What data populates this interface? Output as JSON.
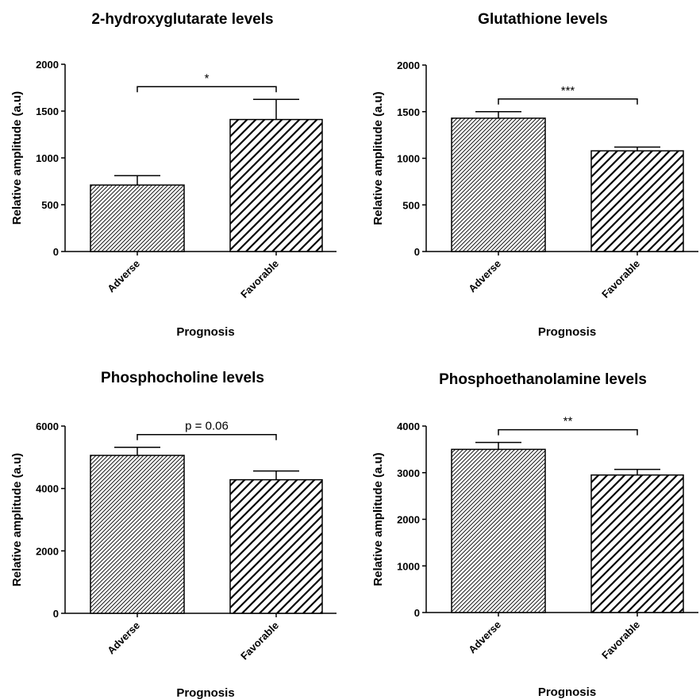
{
  "chart_data": [
    {
      "type": "bar",
      "title": "2-hydroxyglutarate levels",
      "xlabel": "Prognosis",
      "ylabel": "Relative amplitude (a.u)",
      "categories": [
        "Adverse",
        "Favorable"
      ],
      "values": [
        710,
        1410
      ],
      "errors": [
        100,
        215
      ],
      "ylim": [
        0,
        2000
      ],
      "yticks": [
        0,
        500,
        1000,
        1500,
        2000
      ],
      "significance": "*",
      "grid": false,
      "fill_patterns": [
        "hatch-dense",
        "hatch-sparse"
      ]
    },
    {
      "type": "bar",
      "title": "Glutathione levels",
      "xlabel": "Prognosis",
      "ylabel": "Relative amplitude (a.u)",
      "categories": [
        "Adverse",
        "Favorable"
      ],
      "values": [
        1430,
        1080
      ],
      "errors": [
        70,
        40
      ],
      "ylim": [
        0,
        2000
      ],
      "yticks": [
        0,
        500,
        1000,
        1500,
        2000
      ],
      "significance": "***",
      "grid": false,
      "fill_patterns": [
        "hatch-dense",
        "hatch-sparse"
      ]
    },
    {
      "type": "bar",
      "title": "Phosphocholine levels",
      "xlabel": "Prognosis",
      "ylabel": "Relative amplitude (a.u)",
      "categories": [
        "Adverse",
        "Favorable"
      ],
      "values": [
        5060,
        4280
      ],
      "errors": [
        260,
        280
      ],
      "ylim": [
        0,
        6000
      ],
      "yticks": [
        0,
        2000,
        4000,
        6000
      ],
      "significance": "p = 0.06",
      "grid": false,
      "fill_patterns": [
        "hatch-dense",
        "hatch-sparse"
      ]
    },
    {
      "type": "bar",
      "title": "Phosphoethanolamine levels",
      "xlabel": "Prognosis",
      "ylabel": "Relative amplitude (a.u)",
      "categories": [
        "Adverse",
        "Favorable"
      ],
      "values": [
        3500,
        2950
      ],
      "errors": [
        150,
        120
      ],
      "ylim": [
        0,
        4000
      ],
      "yticks": [
        0,
        1000,
        2000,
        3000,
        4000
      ],
      "significance": "**",
      "grid": false,
      "fill_patterns": [
        "hatch-dense",
        "hatch-sparse"
      ]
    }
  ]
}
